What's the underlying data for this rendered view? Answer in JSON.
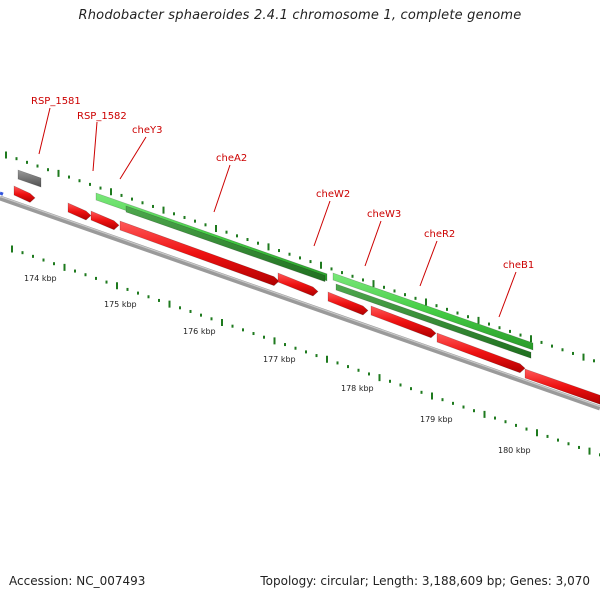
{
  "title": "Rhodobacter sphaeroides 2.4.1 chromosome 1, complete genome",
  "footer": {
    "accession": "Accession: NC_007493",
    "stats": "Topology: circular; Length: 3,188,609 bp; Genes: 3,070"
  },
  "colors": {
    "backbone": "#808080",
    "forward_gene": "#ee1111",
    "green_feature": "#44cc44",
    "green_feature_dark": "#2e8f2e",
    "grey_feature": "#707070",
    "label": "#cc0000",
    "tick_major": "#1e7a1e",
    "tick_minor": "#1e7a1e"
  },
  "scale": {
    "unit": "kbp",
    "labels": [
      "174 kbp",
      "175 kbp",
      "176 kbp",
      "177 kbp",
      "178 kbp",
      "179 kbp",
      "180 kbp"
    ]
  },
  "gene_labels": [
    "RSP_1581",
    "RSP_1582",
    "cheY3",
    "cheA2",
    "cheW2",
    "cheW3",
    "cheR2",
    "cheB1"
  ]
}
